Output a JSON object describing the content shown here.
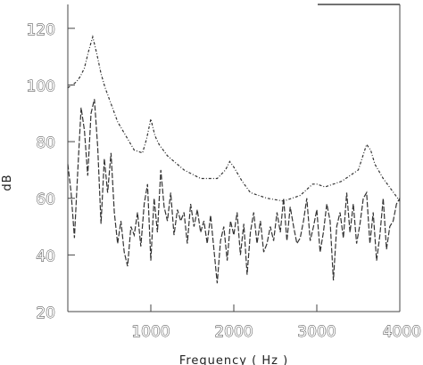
{
  "chart_data": {
    "type": "line",
    "title": "",
    "xlabel": "Frequency ( Hz )",
    "ylabel": "dB",
    "xlim": [
      0,
      4000
    ],
    "ylim": [
      20,
      130
    ],
    "x_ticks": [
      1000,
      2000,
      3000,
      4000
    ],
    "x_tick_labels": [
      "1000",
      "2000",
      "3000",
      "4000"
    ],
    "y_ticks": [
      20,
      40,
      60,
      80,
      100,
      120
    ],
    "y_tick_labels": [
      "20",
      "40",
      "60",
      "80",
      "100",
      "120"
    ],
    "grid": false,
    "legend": "none",
    "series": [
      {
        "style": "dash-dot",
        "color": "#333333",
        "x": [
          0,
          100,
          150,
          200,
          250,
          300,
          350,
          400,
          450,
          500,
          600,
          700,
          800,
          900,
          950,
          1000,
          1050,
          1100,
          1200,
          1400,
          1600,
          1800,
          1900,
          1950,
          2000,
          2100,
          2200,
          2400,
          2600,
          2800,
          2950,
          3000,
          3100,
          3300,
          3500,
          3600,
          3650,
          3700,
          3800,
          3900,
          4000
        ],
        "y": [
          99,
          101,
          103,
          106,
          112,
          117,
          111,
          104,
          99,
          95,
          87,
          82,
          77,
          76,
          81,
          88,
          82,
          79,
          75,
          70,
          67,
          67,
          70,
          73,
          71,
          66,
          62,
          60,
          59,
          61,
          65,
          65,
          64,
          66,
          70,
          79,
          77,
          72,
          67,
          63,
          59
        ]
      },
      {
        "style": "dashed",
        "color": "#333333",
        "x": [
          0,
          40,
          80,
          120,
          160,
          200,
          240,
          280,
          320,
          360,
          400,
          440,
          480,
          520,
          560,
          600,
          640,
          680,
          720,
          760,
          800,
          840,
          880,
          920,
          960,
          1000,
          1040,
          1080,
          1120,
          1160,
          1200,
          1240,
          1280,
          1320,
          1360,
          1400,
          1440,
          1480,
          1520,
          1560,
          1600,
          1640,
          1680,
          1720,
          1760,
          1800,
          1840,
          1880,
          1920,
          1960,
          2000,
          2040,
          2080,
          2120,
          2160,
          2200,
          2240,
          2280,
          2320,
          2360,
          2400,
          2440,
          2480,
          2520,
          2560,
          2600,
          2640,
          2680,
          2720,
          2760,
          2800,
          2840,
          2880,
          2920,
          2960,
          3000,
          3040,
          3080,
          3120,
          3160,
          3200,
          3240,
          3280,
          3320,
          3360,
          3400,
          3440,
          3480,
          3520,
          3560,
          3600,
          3640,
          3680,
          3720,
          3760,
          3800,
          3840,
          3880,
          3920,
          3960,
          4000
        ],
        "y": [
          72,
          62,
          46,
          70,
          92,
          84,
          68,
          90,
          95,
          78,
          51,
          74,
          62,
          76,
          55,
          44,
          52,
          41,
          36,
          50,
          47,
          55,
          43,
          58,
          65,
          38,
          60,
          48,
          70,
          57,
          52,
          62,
          47,
          56,
          52,
          55,
          44,
          58,
          50,
          56,
          48,
          52,
          44,
          54,
          42,
          30,
          45,
          50,
          38,
          52,
          47,
          55,
          40,
          51,
          33,
          48,
          55,
          44,
          52,
          41,
          44,
          50,
          45,
          55,
          48,
          60,
          45,
          57,
          50,
          44,
          46,
          52,
          60,
          45,
          50,
          56,
          41,
          48,
          58,
          52,
          31,
          50,
          55,
          46,
          62,
          48,
          58,
          44,
          51,
          60,
          62,
          44,
          55,
          38,
          47,
          60,
          42,
          50,
          52,
          58,
          60
        ]
      }
    ]
  }
}
